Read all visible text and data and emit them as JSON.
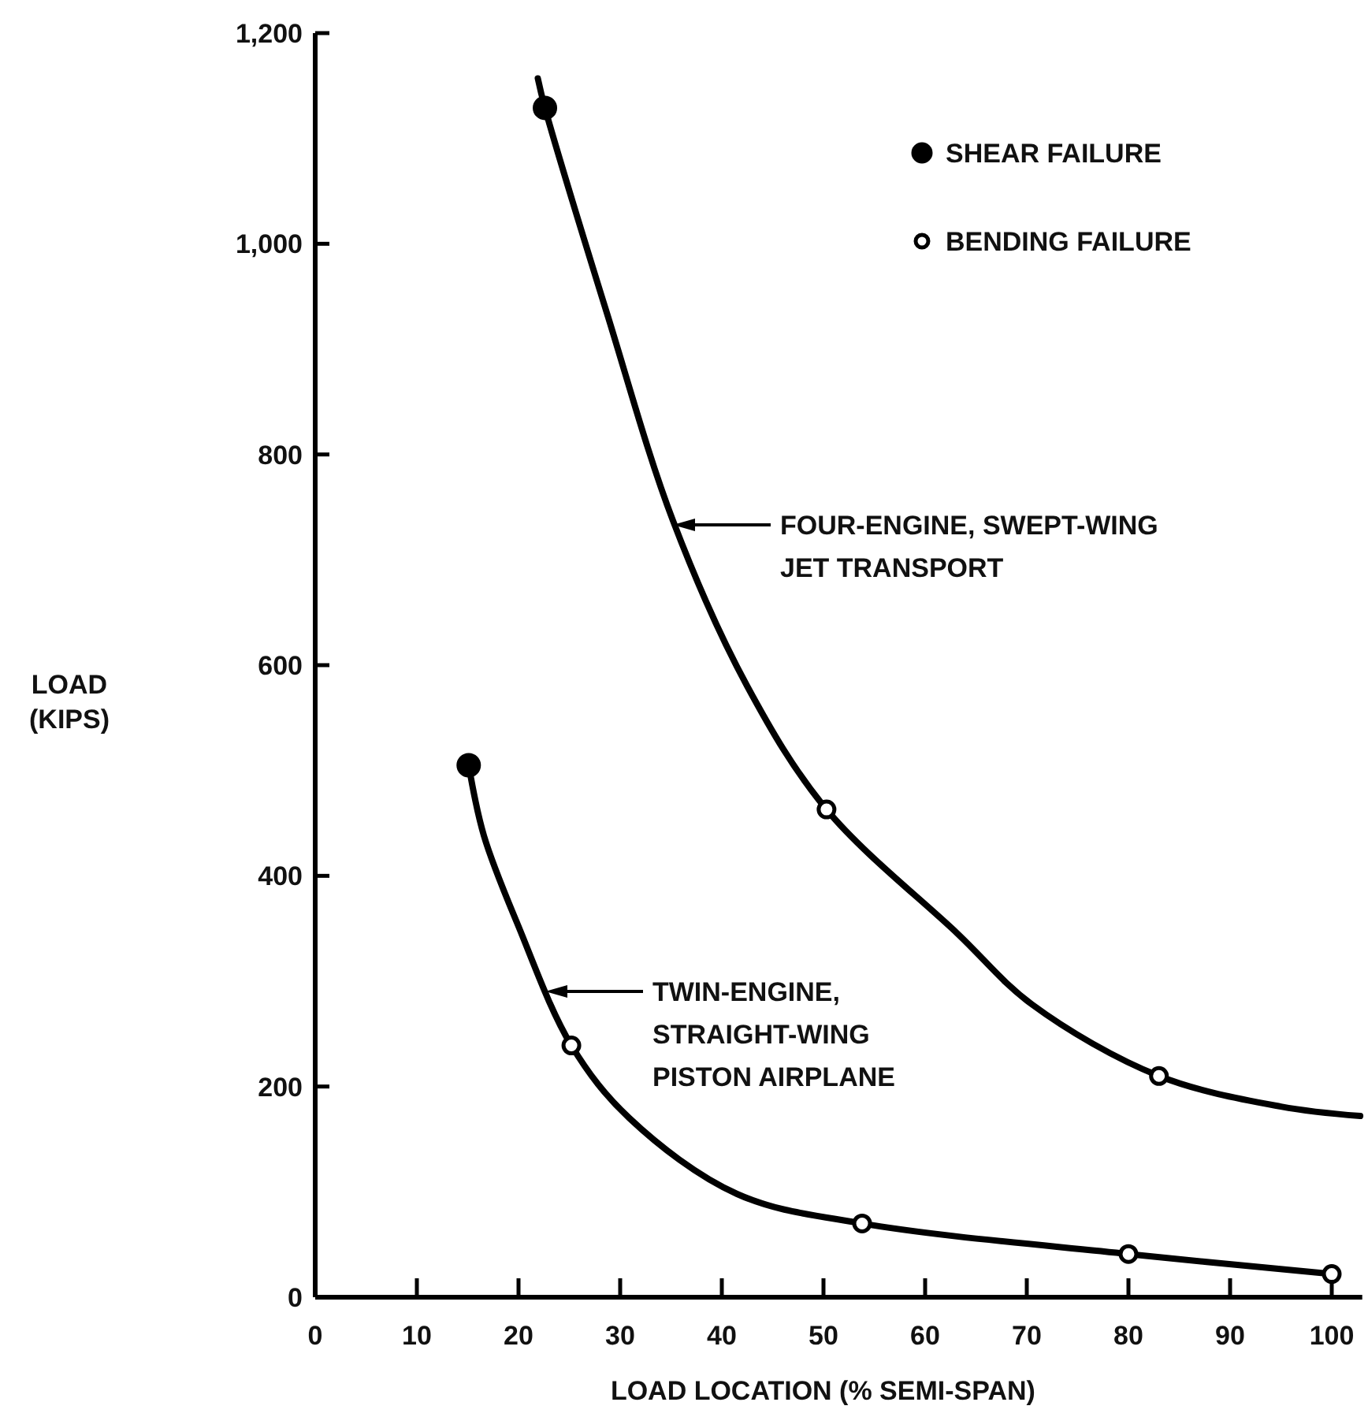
{
  "chart_data": {
    "type": "line",
    "xlabel": "LOAD LOCATION (% SEMI-SPAN)",
    "ylabel": "LOAD\n(KIPS)",
    "xlim": [
      0,
      103
    ],
    "xticks": [
      0,
      10,
      20,
      30,
      40,
      50,
      60,
      70,
      80,
      90,
      100
    ],
    "ylim": [
      0,
      1200
    ],
    "yticks": [
      0,
      200,
      400,
      600,
      800,
      {
        "value": 1000,
        "label": "1,000"
      },
      {
        "value": 1200,
        "label": "1,200"
      }
    ],
    "line_style": "solid",
    "legend": "top right",
    "series": [
      {
        "marker": "none",
        "color": "#000000",
        "x": [
          21.9,
          22.6,
          28.7,
          35.2,
          42.5,
          50.3,
          63.2,
          70.5,
          83,
          95,
          102.8
        ],
        "values": [
          1157,
          1129,
          934,
          737,
          580,
          463,
          345,
          278,
          210,
          181,
          172
        ]
      },
      {
        "marker": "none",
        "color": "#000000",
        "x": [
          15.1,
          16.6,
          20,
          25.2,
          30.9,
          41.5,
          53.8,
          80,
          100
        ],
        "values": [
          505,
          438,
          352,
          239,
          170,
          98,
          70,
          41,
          22
        ]
      },
      {
        "type": "scatter",
        "marker": "circle",
        "name": "SHEAR FAILURE",
        "color": "#000000",
        "x": [
          22.6,
          15.1
        ],
        "values": [
          1129,
          505
        ]
      },
      {
        "type": "scatter",
        "marker": "circle",
        "name": "BENDING FAILURE",
        "color": "#000000",
        "x": [
          25.2,
          50.3,
          53.8,
          83,
          80,
          100
        ],
        "values": [
          239,
          463,
          70,
          210,
          41,
          22
        ]
      }
    ],
    "annotations": [
      "FOUR-ENGINE, SWEPT-WING\nJET TRANSPORT",
      "TWIN-ENGINE,\nSTRAIGHT-WING\nPISTON AIRPLANE"
    ]
  }
}
